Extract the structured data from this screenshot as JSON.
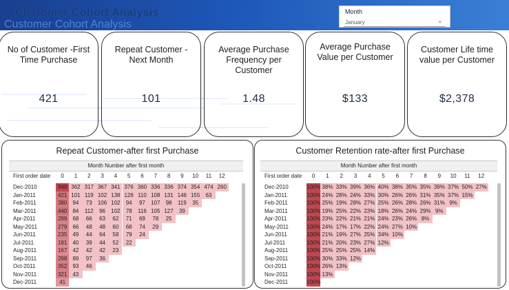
{
  "header": {
    "title": "Customer Cohort Analysis",
    "ghost_title": "Customer Cohort Analysis"
  },
  "slicer": {
    "label": "Month",
    "value": "January"
  },
  "kpis": [
    {
      "title": "No of Customer -First Time Purchase",
      "value": "421"
    },
    {
      "title": "Repeat Customer -Next Month",
      "value": "101"
    },
    {
      "title": "Average Purchase Frequency per Customer",
      "value": "1.48"
    },
    {
      "title": "Average Purchase Value per Customer",
      "value": "$133"
    },
    {
      "title": "Customer Life time value per Customer",
      "value": "$2,378"
    }
  ],
  "repeat_table": {
    "title": "Repeat Customer-after first Purchase",
    "column_header": "Month Number after first month",
    "row_header": "First order date",
    "columns": [
      "0",
      "1",
      "2",
      "3",
      "4",
      "5",
      "6",
      "7",
      "8",
      "9",
      "10",
      "11",
      "12"
    ],
    "rows": [
      {
        "label": "Dec-2010",
        "values": [
          "948",
          "362",
          "317",
          "367",
          "341",
          "376",
          "360",
          "336",
          "336",
          "374",
          "354",
          "474",
          "260"
        ]
      },
      {
        "label": "Jan-2011",
        "values": [
          "421",
          "101",
          "119",
          "102",
          "138",
          "126",
          "110",
          "108",
          "131",
          "146",
          "155",
          "63",
          ""
        ]
      },
      {
        "label": "Feb-2011",
        "values": [
          "380",
          "94",
          "73",
          "106",
          "102",
          "94",
          "97",
          "107",
          "98",
          "119",
          "35",
          "",
          ""
        ]
      },
      {
        "label": "Mar-2011",
        "values": [
          "440",
          "84",
          "112",
          "96",
          "102",
          "78",
          "116",
          "105",
          "127",
          "39",
          "",
          "",
          ""
        ]
      },
      {
        "label": "Apr-2011",
        "values": [
          "299",
          "68",
          "66",
          "63",
          "62",
          "71",
          "69",
          "78",
          "25",
          "",
          "",
          "",
          ""
        ]
      },
      {
        "label": "May-2011",
        "values": [
          "279",
          "66",
          "48",
          "48",
          "60",
          "68",
          "74",
          "29",
          "",
          "",
          "",
          "",
          ""
        ]
      },
      {
        "label": "Jun-2011",
        "values": [
          "235",
          "49",
          "44",
          "64",
          "58",
          "79",
          "24",
          "",
          "",
          "",
          "",
          "",
          ""
        ]
      },
      {
        "label": "Jul-2011",
        "values": [
          "191",
          "40",
          "39",
          "44",
          "52",
          "22",
          "",
          "",
          "",
          "",
          "",
          "",
          ""
        ]
      },
      {
        "label": "Aug-2011",
        "values": [
          "167",
          "42",
          "42",
          "42",
          "23",
          "",
          "",
          "",
          "",
          "",
          "",
          "",
          ""
        ]
      },
      {
        "label": "Sep-2011",
        "values": [
          "298",
          "89",
          "97",
          "36",
          "",
          "",
          "",
          "",
          "",
          "",
          "",
          "",
          ""
        ]
      },
      {
        "label": "Oct-2011",
        "values": [
          "352",
          "93",
          "46",
          "",
          "",
          "",
          "",
          "",
          "",
          "",
          "",
          "",
          ""
        ]
      },
      {
        "label": "Nov-2011",
        "values": [
          "321",
          "43",
          "",
          "",
          "",
          "",
          "",
          "",
          "",
          "",
          "",
          "",
          ""
        ]
      },
      {
        "label": "Dec-2011",
        "values": [
          "41",
          "",
          "",
          "",
          "",
          "",
          "",
          "",
          "",
          "",
          "",
          "",
          ""
        ]
      }
    ]
  },
  "retention_table": {
    "title": "Customer Retention rate-after first Purchase",
    "column_header": "Month Number after first month",
    "row_header": "First order date",
    "columns": [
      "0",
      "1",
      "2",
      "3",
      "4",
      "5",
      "6",
      "7",
      "8",
      "9",
      "10",
      "11",
      "12"
    ],
    "rows": [
      {
        "label": "Dec-2010",
        "values": [
          "100%",
          "38%",
          "33%",
          "39%",
          "36%",
          "40%",
          "38%",
          "35%",
          "35%",
          "39%",
          "37%",
          "50%",
          "27%"
        ]
      },
      {
        "label": "Jan-2011",
        "values": [
          "100%",
          "24%",
          "28%",
          "24%",
          "33%",
          "30%",
          "26%",
          "26%",
          "31%",
          "35%",
          "37%",
          "15%",
          ""
        ]
      },
      {
        "label": "Feb-2011",
        "values": [
          "100%",
          "25%",
          "19%",
          "28%",
          "27%",
          "25%",
          "26%",
          "28%",
          "26%",
          "31%",
          "9%",
          "",
          ""
        ]
      },
      {
        "label": "Mar-2011",
        "values": [
          "100%",
          "19%",
          "25%",
          "22%",
          "23%",
          "18%",
          "26%",
          "24%",
          "29%",
          "9%",
          "",
          "",
          ""
        ]
      },
      {
        "label": "Apr-2011",
        "values": [
          "100%",
          "23%",
          "22%",
          "21%",
          "21%",
          "24%",
          "23%",
          "26%",
          "8%",
          "",
          "",
          "",
          ""
        ]
      },
      {
        "label": "May-2011",
        "values": [
          "100%",
          "24%",
          "17%",
          "17%",
          "22%",
          "24%",
          "27%",
          "10%",
          "",
          "",
          "",
          "",
          ""
        ]
      },
      {
        "label": "Jun-2011",
        "values": [
          "100%",
          "21%",
          "19%",
          "27%",
          "25%",
          "34%",
          "10%",
          "",
          "",
          "",
          "",
          "",
          ""
        ]
      },
      {
        "label": "Jul-2011",
        "values": [
          "100%",
          "21%",
          "20%",
          "23%",
          "27%",
          "12%",
          "",
          "",
          "",
          "",
          "",
          "",
          ""
        ]
      },
      {
        "label": "Aug-2011",
        "values": [
          "100%",
          "25%",
          "25%",
          "25%",
          "14%",
          "",
          "",
          "",
          "",
          "",
          "",
          "",
          ""
        ]
      },
      {
        "label": "Sep-2011",
        "values": [
          "100%",
          "30%",
          "33%",
          "12%",
          "",
          "",
          "",
          "",
          "",
          "",
          "",
          "",
          ""
        ]
      },
      {
        "label": "Oct-2011",
        "values": [
          "100%",
          "26%",
          "13%",
          "",
          "",
          "",
          "",
          "",
          "",
          "",
          "",
          "",
          ""
        ]
      },
      {
        "label": "Nov-2011",
        "values": [
          "100%",
          "13%",
          "",
          "",
          "",
          "",
          "",
          "",
          "",
          "",
          "",
          "",
          ""
        ]
      },
      {
        "label": "Dec-2011",
        "values": [
          "100%",
          "",
          "",
          "",
          "",
          "",
          "",
          "",
          "",
          "",
          "",
          "",
          ""
        ]
      }
    ]
  },
  "colors": {
    "header_dark": "#1a3f8f",
    "heat_high": "#c0464f",
    "heat_mid": "#e39aa2",
    "heat_base": "#f2c2c7"
  }
}
